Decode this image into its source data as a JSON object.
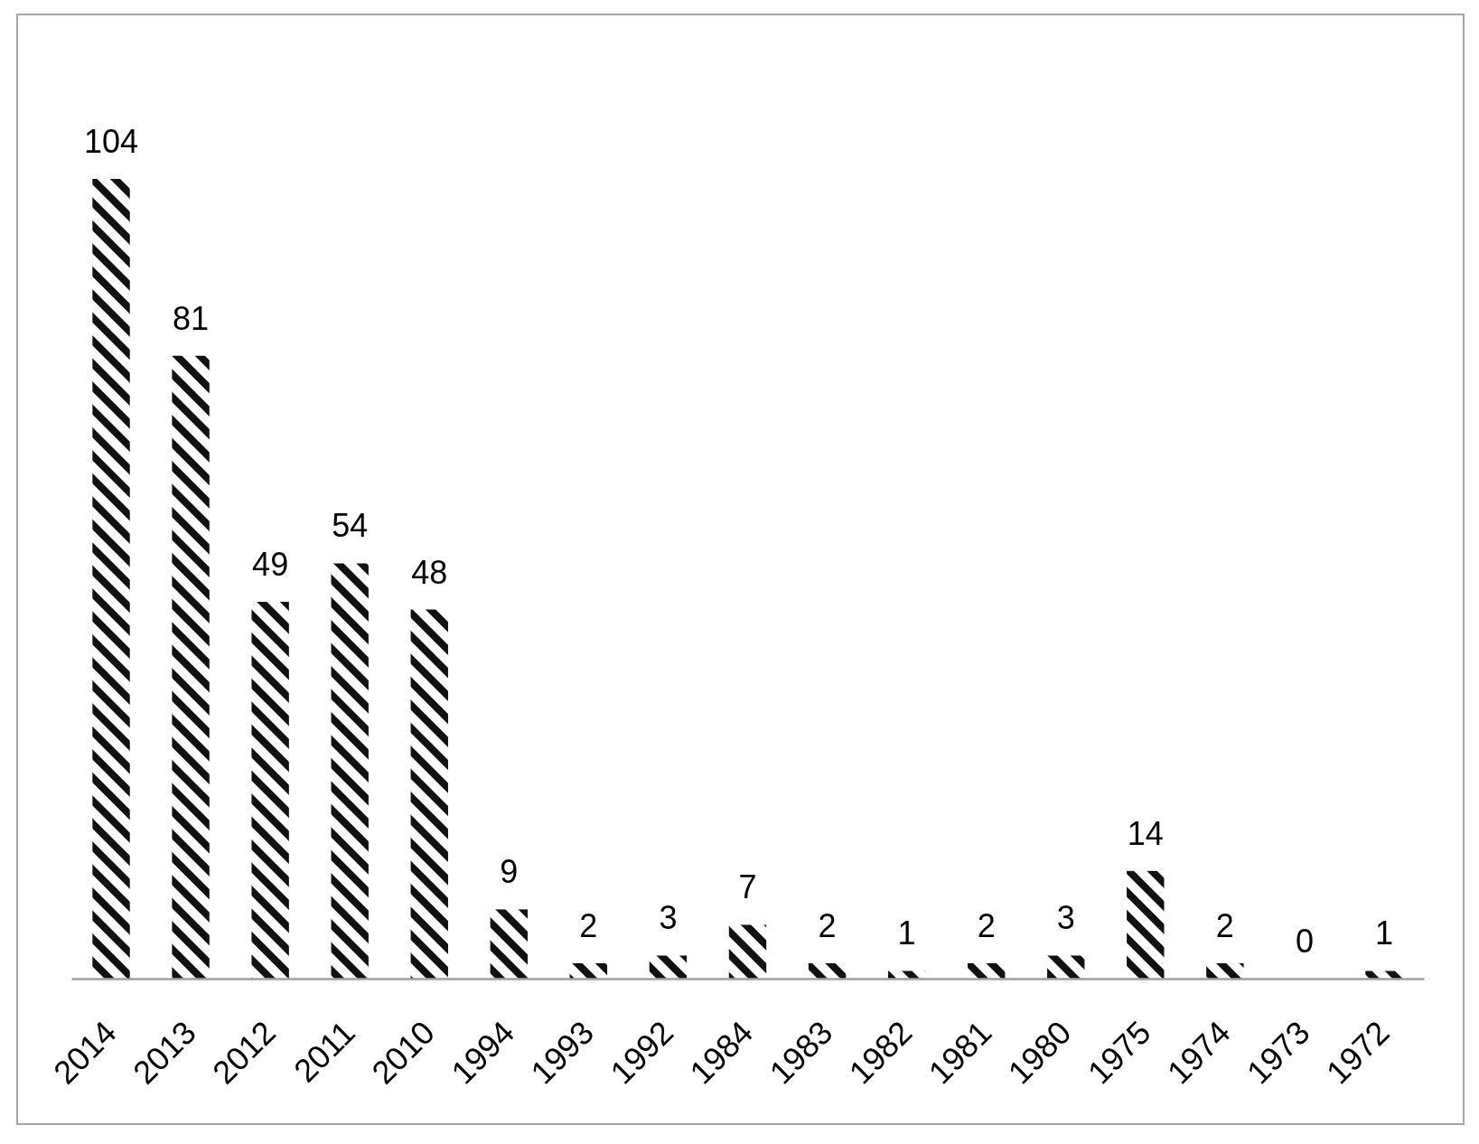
{
  "chart_data": {
    "type": "bar",
    "categories": [
      "2014",
      "2013",
      "2012",
      "2011",
      "2010",
      "1994",
      "1993",
      "1992",
      "1984",
      "1983",
      "1982",
      "1981",
      "1980",
      "1975",
      "1974",
      "1973",
      "1972"
    ],
    "values": [
      104,
      81,
      49,
      54,
      48,
      9,
      2,
      3,
      7,
      2,
      1,
      2,
      3,
      14,
      2,
      0,
      1
    ],
    "color": "#111111",
    "tick_labels": "x",
    "data_labels": true
  }
}
